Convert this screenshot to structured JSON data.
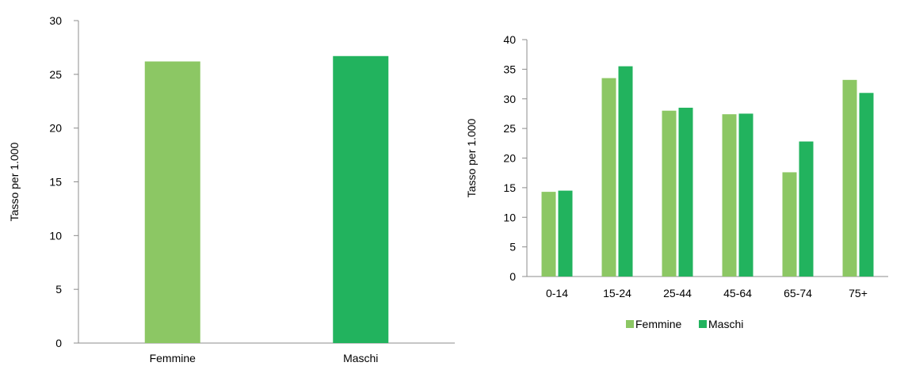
{
  "chart_data": [
    {
      "type": "bar",
      "categories": [
        "Femmine",
        "Maschi"
      ],
      "values": [
        26.2,
        26.7
      ],
      "colors": [
        "#8cc764",
        "#22b35e"
      ],
      "ylabel": "Tasso per 1.000",
      "ylim": [
        0,
        30
      ],
      "yticks": [
        0,
        5,
        10,
        15,
        20,
        25,
        30
      ],
      "grid": false,
      "legend": "none"
    },
    {
      "type": "bar",
      "categories": [
        "0-14",
        "15-24",
        "25-44",
        "45-64",
        "65-74",
        "75+"
      ],
      "series": [
        {
          "name": "Femmine",
          "color": "#8cc764",
          "values": [
            14.3,
            33.5,
            28.0,
            27.4,
            17.6,
            33.2
          ]
        },
        {
          "name": "Maschi",
          "color": "#22b35e",
          "values": [
            14.5,
            35.5,
            28.5,
            27.5,
            22.8,
            31.0
          ]
        }
      ],
      "ylabel": "Tasso per 1.000",
      "ylim": [
        0,
        40
      ],
      "yticks": [
        0,
        5,
        10,
        15,
        20,
        25,
        30,
        35,
        40
      ],
      "grid": false,
      "legend": "bottom-center"
    }
  ]
}
